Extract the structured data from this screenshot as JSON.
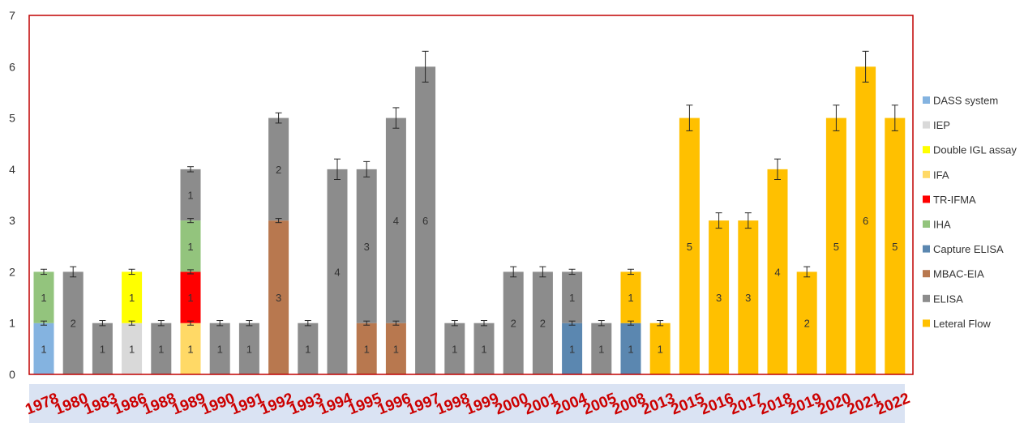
{
  "chart_data": {
    "type": "bar",
    "stacked": true,
    "categories": [
      "1978",
      "1980",
      "1983",
      "1986",
      "1988",
      "1989",
      "1990",
      "1991",
      "1992",
      "1993",
      "1994",
      "1995",
      "1996",
      "1997",
      "1998",
      "1999",
      "2000",
      "2001",
      "2004",
      "2005",
      "2008",
      "2013",
      "2015",
      "2016",
      "2017",
      "2018",
      "2019",
      "2020",
      "2021",
      "2022"
    ],
    "ylim": [
      0,
      7
    ],
    "yticks": [
      0,
      1,
      2,
      3,
      4,
      5,
      6,
      7
    ],
    "legend_position": "right",
    "plot_border_color": "#c00000",
    "category_band_color": "#dae3f3",
    "category_text_color": "#cc0000",
    "series": [
      {
        "name": "DASS system",
        "color": "#84b3e0",
        "values": [
          1,
          0,
          0,
          0,
          0,
          0,
          0,
          0,
          0,
          0,
          0,
          0,
          0,
          0,
          0,
          0,
          0,
          0,
          0,
          0,
          0,
          0,
          0,
          0,
          0,
          0,
          0,
          0,
          0,
          0
        ]
      },
      {
        "name": "IEP",
        "color": "#d9d9d9",
        "values": [
          0,
          0,
          0,
          1,
          0,
          0,
          0,
          0,
          0,
          0,
          0,
          0,
          0,
          0,
          0,
          0,
          0,
          0,
          0,
          0,
          0,
          0,
          0,
          0,
          0,
          0,
          0,
          0,
          0,
          0
        ]
      },
      {
        "name": "Double IGL assay",
        "color": "#ffff00",
        "values": [
          0,
          0,
          0,
          1,
          0,
          0,
          0,
          0,
          0,
          0,
          0,
          0,
          0,
          0,
          0,
          0,
          0,
          0,
          0,
          0,
          0,
          0,
          0,
          0,
          0,
          0,
          0,
          0,
          0,
          0
        ]
      },
      {
        "name": "IFA",
        "color": "#ffd966",
        "values": [
          0,
          0,
          0,
          0,
          0,
          1,
          0,
          0,
          0,
          0,
          0,
          0,
          0,
          0,
          0,
          0,
          0,
          0,
          0,
          0,
          0,
          0,
          0,
          0,
          0,
          0,
          0,
          0,
          0,
          0
        ]
      },
      {
        "name": "TR-IFMA",
        "color": "#ff0000",
        "values": [
          0,
          0,
          0,
          0,
          0,
          1,
          0,
          0,
          0,
          0,
          0,
          0,
          0,
          0,
          0,
          0,
          0,
          0,
          0,
          0,
          0,
          0,
          0,
          0,
          0,
          0,
          0,
          0,
          0,
          0
        ]
      },
      {
        "name": "IHA",
        "color": "#93c47d",
        "values": [
          1,
          0,
          0,
          0,
          0,
          1,
          0,
          0,
          0,
          0,
          0,
          0,
          0,
          0,
          0,
          0,
          0,
          0,
          0,
          0,
          0,
          0,
          0,
          0,
          0,
          0,
          0,
          0,
          0,
          0
        ]
      },
      {
        "name": "Capture ELISA",
        "color": "#5b87b0",
        "values": [
          0,
          0,
          0,
          0,
          0,
          0,
          0,
          0,
          0,
          0,
          0,
          0,
          0,
          0,
          0,
          0,
          0,
          0,
          1,
          0,
          1,
          0,
          0,
          0,
          0,
          0,
          0,
          0,
          0,
          0
        ]
      },
      {
        "name": "MBAC-EIA",
        "color": "#b8784f",
        "values": [
          0,
          0,
          0,
          0,
          0,
          0,
          0,
          0,
          3,
          0,
          0,
          1,
          1,
          0,
          0,
          0,
          0,
          0,
          0,
          0,
          0,
          0,
          0,
          0,
          0,
          0,
          0,
          0,
          0,
          0
        ]
      },
      {
        "name": "ELISA",
        "color": "#8c8c8c",
        "values": [
          0,
          2,
          1,
          0,
          1,
          1,
          1,
          1,
          2,
          1,
          4,
          3,
          4,
          6,
          1,
          1,
          2,
          2,
          1,
          1,
          0,
          0,
          0,
          0,
          0,
          0,
          0,
          0,
          0,
          0
        ]
      },
      {
        "name": "Leteral Flow",
        "color": "#ffc000",
        "values": [
          0,
          0,
          0,
          0,
          0,
          0,
          0,
          0,
          0,
          0,
          0,
          0,
          0,
          0,
          0,
          0,
          0,
          0,
          0,
          0,
          1,
          1,
          5,
          3,
          3,
          4,
          2,
          5,
          6,
          5
        ]
      }
    ],
    "error_bar_half": [
      0.05,
      0.1,
      0.05,
      0.05,
      0.05,
      0.05,
      0.05,
      0.05,
      0.1,
      0.05,
      0.2,
      0.15,
      0.2,
      0.3,
      0.05,
      0.05,
      0.1,
      0.1,
      0.05,
      0.05,
      0.05,
      0.05,
      0.25,
      0.15,
      0.15,
      0.2,
      0.1,
      0.25,
      0.3,
      0.25
    ],
    "segment_error_half": 0.04
  }
}
